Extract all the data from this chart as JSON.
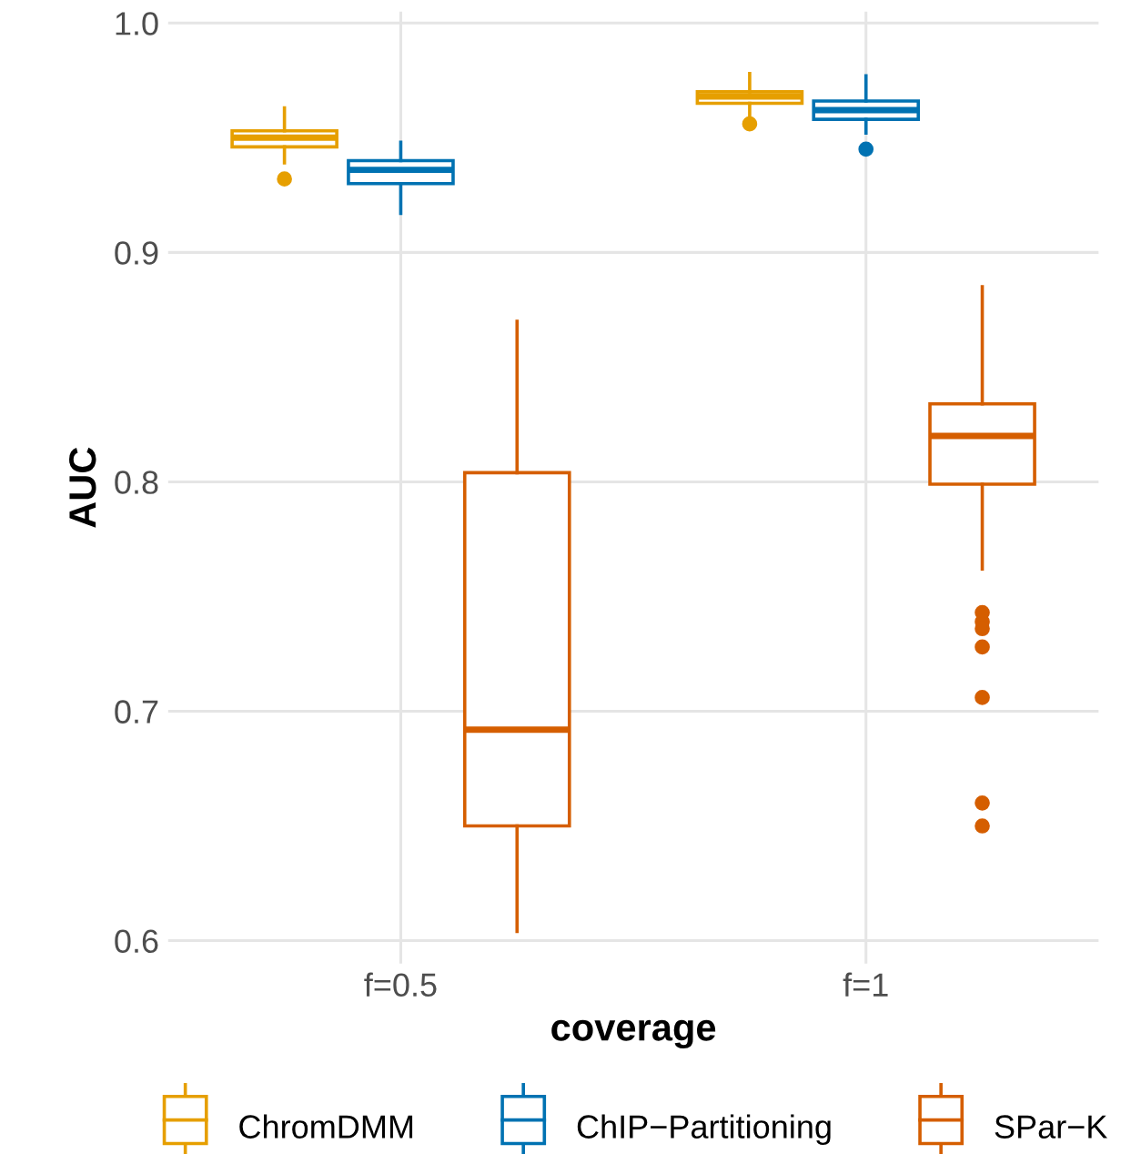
{
  "chart_data": {
    "type": "box",
    "xlabel": "coverage",
    "ylabel": "AUC",
    "categories": [
      "f=0.5",
      "f=1"
    ],
    "ylim": [
      0.59,
      1.005
    ],
    "yticks": [
      {
        "value": 0.6,
        "label": "0.6"
      },
      {
        "value": 0.7,
        "label": "0.7"
      },
      {
        "value": 0.8,
        "label": "0.8"
      },
      {
        "value": 0.9,
        "label": "0.9"
      },
      {
        "value": 1.0,
        "label": "1.0"
      }
    ],
    "grid": true,
    "legend": "bottom",
    "series": [
      {
        "name": "ChromDMM",
        "color": "#e69f00",
        "boxes": [
          {
            "low": 0.939,
            "q1": 0.946,
            "median": 0.95,
            "q3": 0.953,
            "high": 0.963,
            "outliers": [
              0.932
            ]
          },
          {
            "low": 0.96,
            "q1": 0.965,
            "median": 0.968,
            "q3": 0.97,
            "high": 0.978,
            "outliers": [
              0.956
            ]
          }
        ]
      },
      {
        "name": "ChIP−Partitioning",
        "color": "#0072b2",
        "boxes": [
          {
            "low": 0.917,
            "q1": 0.93,
            "median": 0.936,
            "q3": 0.94,
            "high": 0.948
          },
          {
            "low": 0.952,
            "q1": 0.958,
            "median": 0.962,
            "q3": 0.966,
            "high": 0.977,
            "outliers": [
              0.945
            ]
          }
        ]
      },
      {
        "name": "SPar−K",
        "color": "#d55e00",
        "boxes": [
          {
            "low": 0.604,
            "q1": 0.65,
            "median": 0.692,
            "q3": 0.804,
            "high": 0.87
          },
          {
            "low": 0.762,
            "q1": 0.799,
            "median": 0.82,
            "q3": 0.834,
            "high": 0.885,
            "outliers": [
              0.743,
              0.739,
              0.736,
              0.728,
              0.706,
              0.66,
              0.65
            ]
          }
        ]
      }
    ]
  }
}
